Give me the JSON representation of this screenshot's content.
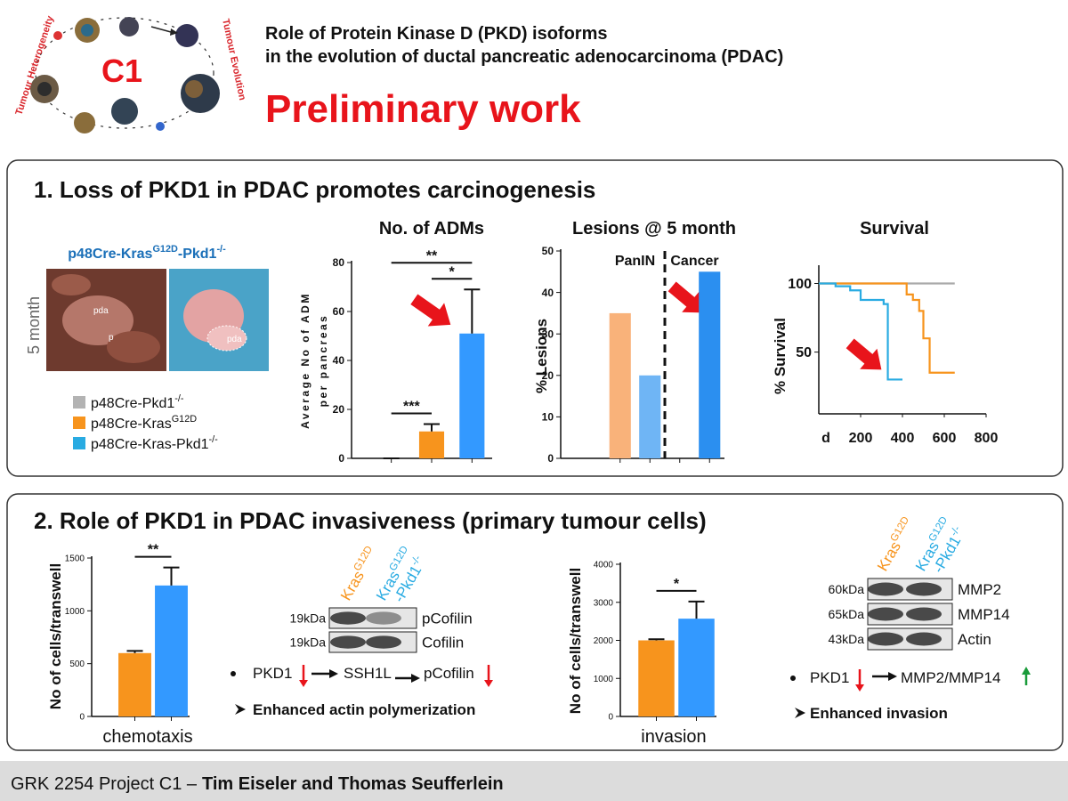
{
  "logo": {
    "label": "C1",
    "left_text": "Tumour Heterogeneity",
    "right_text": "Tumour Evolution"
  },
  "header": {
    "title_lines": [
      "Role of Protein Kinase D (PKD) isoforms",
      "in the evolution of ductal pancreatic adenocarcinoma (PDAC)"
    ],
    "subtitle": "Preliminary work"
  },
  "section1": {
    "heading": "1. Loss of PKD1 in PDAC  promotes carcinogenesis",
    "genotype": [
      "p48Cre-Kras",
      "G12D",
      "-Pkd1",
      "-/-"
    ],
    "photo_time": "5 month",
    "photo_labels": [
      "pda",
      "p",
      "pda"
    ],
    "legend": [
      {
        "parts": [
          "p48Cre-Pkd1",
          "-/-"
        ],
        "color": "#b3b3b3"
      },
      {
        "parts": [
          "p48Cre-Kras",
          "G12D"
        ],
        "color": "#f7941d"
      },
      {
        "parts": [
          "p48Cre-Kras-Pkd1",
          "-/-"
        ],
        "color": "#29abe2"
      }
    ]
  },
  "section2": {
    "heading": "2. Role of PKD1 in PDAC invasiveness (primary tumour cells)",
    "blots": [
      {
        "lanes": [
          [
            "Kras",
            "G12D"
          ],
          [
            "Kras",
            "G12D",
            "-Pkd1",
            "-/-"
          ]
        ],
        "rows": [
          {
            "size": "19kDa",
            "name": "pCofilin"
          },
          {
            "size": "19kDa",
            "name": "Cofilin"
          }
        ],
        "pathway": [
          "PKD1",
          "SSH1L",
          "pCofilin"
        ],
        "conclusion": "Enhanced actin polymerization"
      },
      {
        "lanes": [
          [
            "Kras",
            "G12D"
          ],
          [
            "Kras",
            "G12D",
            "-Pkd1",
            "-/-"
          ]
        ],
        "rows": [
          {
            "size": "60kDa",
            "name": "MMP2"
          },
          {
            "size": "65kDa",
            "name": "MMP14"
          },
          {
            "size": "43kDa",
            "name": "Actin"
          }
        ],
        "pathway": [
          "PKD1",
          "MMP2/MMP14"
        ],
        "conclusion": "Enhanced invasion"
      }
    ]
  },
  "chart_data": [
    {
      "type": "bar",
      "title": "No. of ADMs",
      "ylabel": [
        "Average No of ADM",
        "per pancreas"
      ],
      "categories": [
        null,
        null,
        null
      ],
      "values": [
        0,
        11,
        51
      ],
      "errors": [
        0,
        3,
        18
      ],
      "colors": [
        "#b3b3b3",
        "#f7941d",
        "#3399ff"
      ],
      "ylim": [
        0,
        80
      ],
      "yticks": [
        0,
        20,
        40,
        60,
        80
      ],
      "significance": [
        {
          "label": "***",
          "between": [
            0,
            1
          ]
        },
        {
          "label": "**",
          "between": [
            0,
            2
          ]
        },
        {
          "label": "*",
          "between": [
            1,
            2
          ]
        }
      ]
    },
    {
      "type": "bar",
      "title": "Lesions @ 5 month",
      "ylabel": "% Lesions",
      "groups": [
        "PanIN",
        "Cancer"
      ],
      "categories": [
        null,
        null,
        null,
        null
      ],
      "values": [
        35,
        20,
        0,
        45
      ],
      "colors": [
        "#f9b27a",
        "#6fb5f5",
        "#f7941d",
        "#2b8ff0"
      ],
      "ylim": [
        0,
        50
      ],
      "yticks": [
        0,
        10,
        20,
        30,
        40,
        50
      ]
    },
    {
      "type": "line",
      "title": "Survival",
      "ylabel": "% Survival",
      "xlabel": "d",
      "step": true,
      "xlim": [
        0,
        800
      ],
      "xticks": [
        200,
        400,
        600,
        800
      ],
      "ylim": [
        5,
        112
      ],
      "yticks": [
        50,
        100
      ],
      "series": [
        {
          "color": "#aaaaaa",
          "x": [
            0,
            650
          ],
          "values": [
            100,
            100
          ]
        },
        {
          "color": "#f7941d",
          "x": [
            0,
            400,
            420,
            450,
            480,
            500,
            530,
            650
          ],
          "values": [
            100,
            100,
            92,
            88,
            80,
            60,
            35,
            35
          ]
        },
        {
          "color": "#29abe2",
          "x": [
            0,
            80,
            150,
            200,
            280,
            310,
            330,
            400
          ],
          "values": [
            100,
            98,
            95,
            88,
            88,
            85,
            30,
            30
          ]
        }
      ]
    },
    {
      "type": "bar",
      "ylabel": "No of cells/transwell",
      "xlabel": "chemotaxis",
      "categories": [
        null,
        null
      ],
      "values": [
        600,
        1240
      ],
      "errors": [
        20,
        170
      ],
      "colors": [
        "#f7941d",
        "#3399ff"
      ],
      "ylim": [
        0,
        1500
      ],
      "yticks": [
        0,
        500,
        1000,
        1500
      ],
      "significance": [
        {
          "label": "**",
          "between": [
            0,
            1
          ]
        }
      ]
    },
    {
      "type": "bar",
      "ylabel": "No of cells/transwell",
      "xlabel": "invasion",
      "categories": [
        null,
        null
      ],
      "values": [
        2000,
        2570
      ],
      "errors": [
        30,
        450
      ],
      "colors": [
        "#f7941d",
        "#3399ff"
      ],
      "ylim": [
        0,
        4000
      ],
      "yticks": [
        0,
        1000,
        2000,
        3000,
        4000
      ],
      "significance": [
        {
          "label": "*",
          "between": [
            0,
            1
          ]
        }
      ]
    }
  ],
  "footer": {
    "project": "GRK 2254 Project C1 –",
    "authors": "Tim Eiseler and Thomas Seufferlein"
  }
}
